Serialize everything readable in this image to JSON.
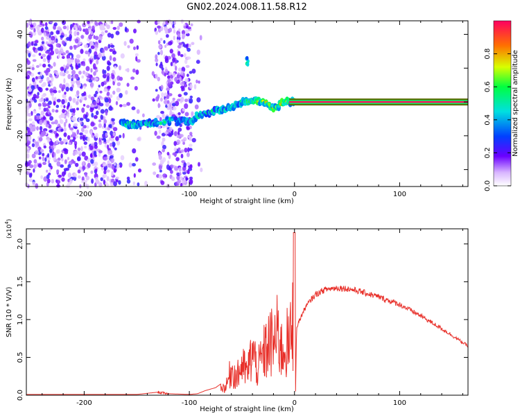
{
  "title": "GN02.2024.008.11.58.R12",
  "chart_data": [
    {
      "type": "heatmap",
      "xlabel": "Height of straight line (km)",
      "ylabel": "Frequency (Hz)",
      "xlim": [
        -255,
        165
      ],
      "ylim": [
        -50,
        48
      ],
      "xticks": [
        -200,
        -100,
        0,
        100
      ],
      "yticks": [
        -40,
        -20,
        0,
        20,
        40
      ],
      "colorbar": {
        "label": "Normalized spectral amplitude",
        "range": [
          0.0,
          1.0
        ],
        "ticks": [
          0.0,
          0.2,
          0.4,
          0.6,
          0.8
        ]
      },
      "ridge": {
        "x": [
          -165,
          -150,
          -140,
          -130,
          -120,
          -110,
          -100,
          -90,
          -80,
          -70,
          -60,
          -50,
          -40,
          -30,
          -20,
          -15,
          -10,
          0,
          50,
          100,
          165
        ],
        "y": [
          -13,
          -13,
          -13,
          -12,
          -11,
          -11,
          -12,
          -7,
          -6,
          -5,
          -3,
          0,
          1,
          0,
          -3,
          -2,
          0,
          0,
          0,
          0,
          0
        ]
      }
    },
    {
      "type": "line",
      "xlabel": "Height of straight line (km)",
      "ylabel": "SNR (10 * V/V)",
      "y_multiplier": "(x10",
      "y_multiplier_exp": "4",
      "y_multiplier_close": ")",
      "xlim": [
        -255,
        165
      ],
      "ylim": [
        0,
        2.2
      ],
      "xticks": [
        -200,
        -100,
        0,
        100
      ],
      "yticks": [
        0.0,
        0.5,
        1.0,
        1.5,
        2.0
      ],
      "envelope": {
        "x": [
          -255,
          -200,
          -150,
          -130,
          -120,
          -100,
          -92,
          -85,
          -75,
          -65,
          -60,
          -55,
          -50,
          -45,
          -40,
          -35,
          -30,
          -25,
          -20,
          -15,
          -12,
          -8,
          -5,
          -2,
          0,
          1,
          2,
          5,
          10,
          15,
          20,
          25,
          30,
          40,
          50,
          60,
          80,
          100,
          120,
          140,
          165
        ],
        "y": [
          0.01,
          0.01,
          0.01,
          0.04,
          0.02,
          0.01,
          0.02,
          0.06,
          0.1,
          0.2,
          0.6,
          0.4,
          0.7,
          0.5,
          1.0,
          0.6,
          0.9,
          1.15,
          1.2,
          1.4,
          1.0,
          1.2,
          1.1,
          1.6,
          2.15,
          0.05,
          0.9,
          1.0,
          1.15,
          1.25,
          1.33,
          1.37,
          1.4,
          1.42,
          1.41,
          1.38,
          1.3,
          1.2,
          1.05,
          0.88,
          0.65
        ]
      }
    }
  ]
}
